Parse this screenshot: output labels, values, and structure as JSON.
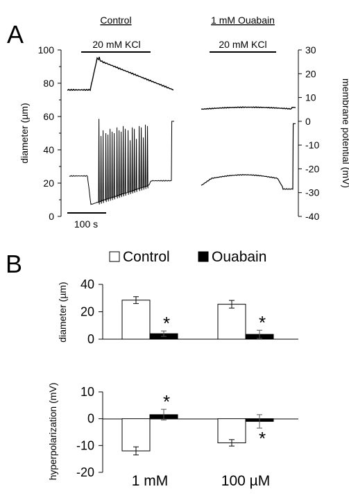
{
  "panel_a": {
    "letter": "A",
    "left_title": "Control",
    "right_title": "1 mM Ouabain",
    "kcl_label": "20 mM KCl",
    "left_axis_label": "diameter (µm)",
    "right_axis_label": "membrane potential (mV)",
    "scale_bar_label": "100 s"
  },
  "panel_b": {
    "letter": "B",
    "legend": {
      "control": "Control",
      "ouabain": "Ouabain"
    },
    "significance_mark": "*"
  },
  "chart_data": [
    {
      "type": "line",
      "panel": "A",
      "left_yaxis": {
        "label": "diameter (µm)",
        "range": [
          0,
          100
        ],
        "ticks": [
          "0",
          "20",
          "40",
          "60",
          "80",
          "100"
        ]
      },
      "right_yaxis": {
        "label": "membrane potential (mV)",
        "range": [
          -40,
          30
        ],
        "ticks": [
          "-40",
          "-30",
          "-20",
          "-10",
          "0",
          "10",
          "20",
          "30"
        ]
      },
      "time_scale": "100 s",
      "series": [
        {
          "condition": "Control",
          "measure": "diameter (µm)",
          "baseline": 76,
          "peak": 95,
          "end": 76
        },
        {
          "condition": "Control",
          "measure": "membrane potential (mV)",
          "baseline": -23,
          "trough": -35,
          "spikes_max": 3,
          "end": 0
        },
        {
          "condition": "1 mM Ouabain",
          "measure": "diameter (µm)",
          "baseline": 65,
          "end": 66
        },
        {
          "condition": "1 mM Ouabain",
          "measure": "membrane potential (mV)",
          "baseline": -27,
          "plateau": -24,
          "end": -1
        }
      ]
    },
    {
      "type": "bar",
      "panel": "B",
      "ylabel": "diameter (µm)",
      "ylim": [
        0,
        40
      ],
      "yticks": [
        "0",
        "20",
        "40"
      ],
      "categories": [
        "1 mM",
        "100 µM"
      ],
      "series": [
        {
          "name": "Control",
          "values": [
            28.5,
            25.5
          ],
          "errors": [
            2.5,
            2.8
          ]
        },
        {
          "name": "Ouabain",
          "values": [
            4,
            3.5
          ],
          "errors": [
            2,
            3
          ]
        }
      ],
      "significant": [
        true,
        true
      ]
    },
    {
      "type": "bar",
      "panel": "B",
      "ylabel": "hyperpolarization (mV)",
      "ylim": [
        -20,
        10
      ],
      "yticks": [
        "10",
        "0",
        "-10",
        "-20"
      ],
      "categories": [
        "1 mM",
        "100 µM"
      ],
      "series": [
        {
          "name": "Control",
          "values": [
            -12,
            -9
          ],
          "errors": [
            1.5,
            1.2
          ]
        },
        {
          "name": "Ouabain",
          "values": [
            1.5,
            -1
          ],
          "errors": [
            2,
            2.5
          ]
        }
      ],
      "significant": [
        true,
        true
      ]
    }
  ]
}
